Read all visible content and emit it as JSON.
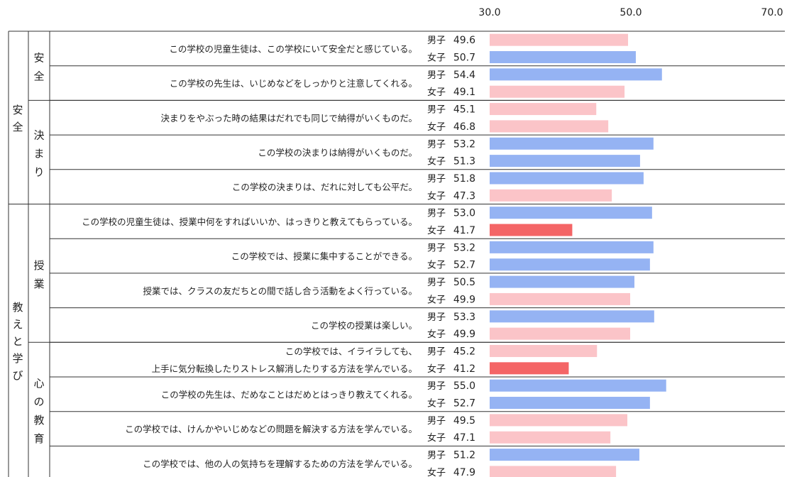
{
  "chart_data": {
    "type": "bar",
    "orientation": "horizontal",
    "xlim": [
      30.0,
      70.0
    ],
    "ticks": [
      "30.0",
      "50.0",
      "70.0"
    ],
    "grid": false,
    "colors": {
      "above": "#95b3f3",
      "below": "#fbc4c8",
      "low": "#f46566"
    },
    "groups": [
      {
        "label": "安全",
        "subgroups": [
          {
            "label": "安全",
            "questions": [
              {
                "text": [
                  "この学校の児童生徒は、この学校にいて安全だと感じている。"
                ],
                "rows": [
                  {
                    "gender": "男子",
                    "value": 49.6
                  },
                  {
                    "gender": "女子",
                    "value": 50.7
                  }
                ]
              },
              {
                "text": [
                  "この学校の先生は、いじめなどをしっかりと注意してくれる。"
                ],
                "rows": [
                  {
                    "gender": "男子",
                    "value": 54.4
                  },
                  {
                    "gender": "女子",
                    "value": 49.1
                  }
                ]
              }
            ]
          },
          {
            "label": "決まり",
            "questions": [
              {
                "text": [
                  "決まりをやぶった時の結果はだれでも同じで納得がいくものだ。"
                ],
                "rows": [
                  {
                    "gender": "男子",
                    "value": 45.1
                  },
                  {
                    "gender": "女子",
                    "value": 46.8
                  }
                ]
              },
              {
                "text": [
                  "この学校の決まりは納得がいくものだ。"
                ],
                "rows": [
                  {
                    "gender": "男子",
                    "value": 53.2
                  },
                  {
                    "gender": "女子",
                    "value": 51.3
                  }
                ]
              },
              {
                "text": [
                  "この学校の決まりは、だれに対しても公平だ。"
                ],
                "rows": [
                  {
                    "gender": "男子",
                    "value": 51.8
                  },
                  {
                    "gender": "女子",
                    "value": 47.3
                  }
                ]
              }
            ]
          }
        ]
      },
      {
        "label": "教えと学び",
        "subgroups": [
          {
            "label": "授業",
            "questions": [
              {
                "text": [
                  "この学校の児童生徒は、授業中何をすればいいか、はっきりと教えてもらっている。"
                ],
                "rows": [
                  {
                    "gender": "男子",
                    "value": 53.0
                  },
                  {
                    "gender": "女子",
                    "value": 41.7
                  }
                ]
              },
              {
                "text": [
                  "この学校では、授業に集中することができる。"
                ],
                "rows": [
                  {
                    "gender": "男子",
                    "value": 53.2
                  },
                  {
                    "gender": "女子",
                    "value": 52.7
                  }
                ]
              },
              {
                "text": [
                  "授業では、クラスの友だちとの間で話し合う活動をよく行っている。"
                ],
                "rows": [
                  {
                    "gender": "男子",
                    "value": 50.5
                  },
                  {
                    "gender": "女子",
                    "value": 49.9
                  }
                ]
              },
              {
                "text": [
                  "この学校の授業は楽しい。"
                ],
                "rows": [
                  {
                    "gender": "男子",
                    "value": 53.3
                  },
                  {
                    "gender": "女子",
                    "value": 49.9
                  }
                ]
              }
            ]
          },
          {
            "label": "心の教育",
            "questions": [
              {
                "text": [
                  "この学校では、イライラしても、",
                  "上手に気分転換したりストレス解消したりする方法を学んでいる。"
                ],
                "rows": [
                  {
                    "gender": "男子",
                    "value": 45.2
                  },
                  {
                    "gender": "女子",
                    "value": 41.2
                  }
                ]
              },
              {
                "text": [
                  "この学校の先生は、だめなことはだめとはっきり教えてくれる。"
                ],
                "rows": [
                  {
                    "gender": "男子",
                    "value": 55.0
                  },
                  {
                    "gender": "女子",
                    "value": 52.7
                  }
                ]
              },
              {
                "text": [
                  "この学校では、けんかやいじめなどの問題を解決する方法を学んでいる。"
                ],
                "rows": [
                  {
                    "gender": "男子",
                    "value": 49.5
                  },
                  {
                    "gender": "女子",
                    "value": 47.1
                  }
                ]
              },
              {
                "text": [
                  "この学校では、他の人の気持ちを理解するための方法を学んでいる。"
                ],
                "rows": [
                  {
                    "gender": "男子",
                    "value": 51.2
                  },
                  {
                    "gender": "女子",
                    "value": 47.9
                  }
                ]
              }
            ]
          }
        ]
      }
    ]
  }
}
